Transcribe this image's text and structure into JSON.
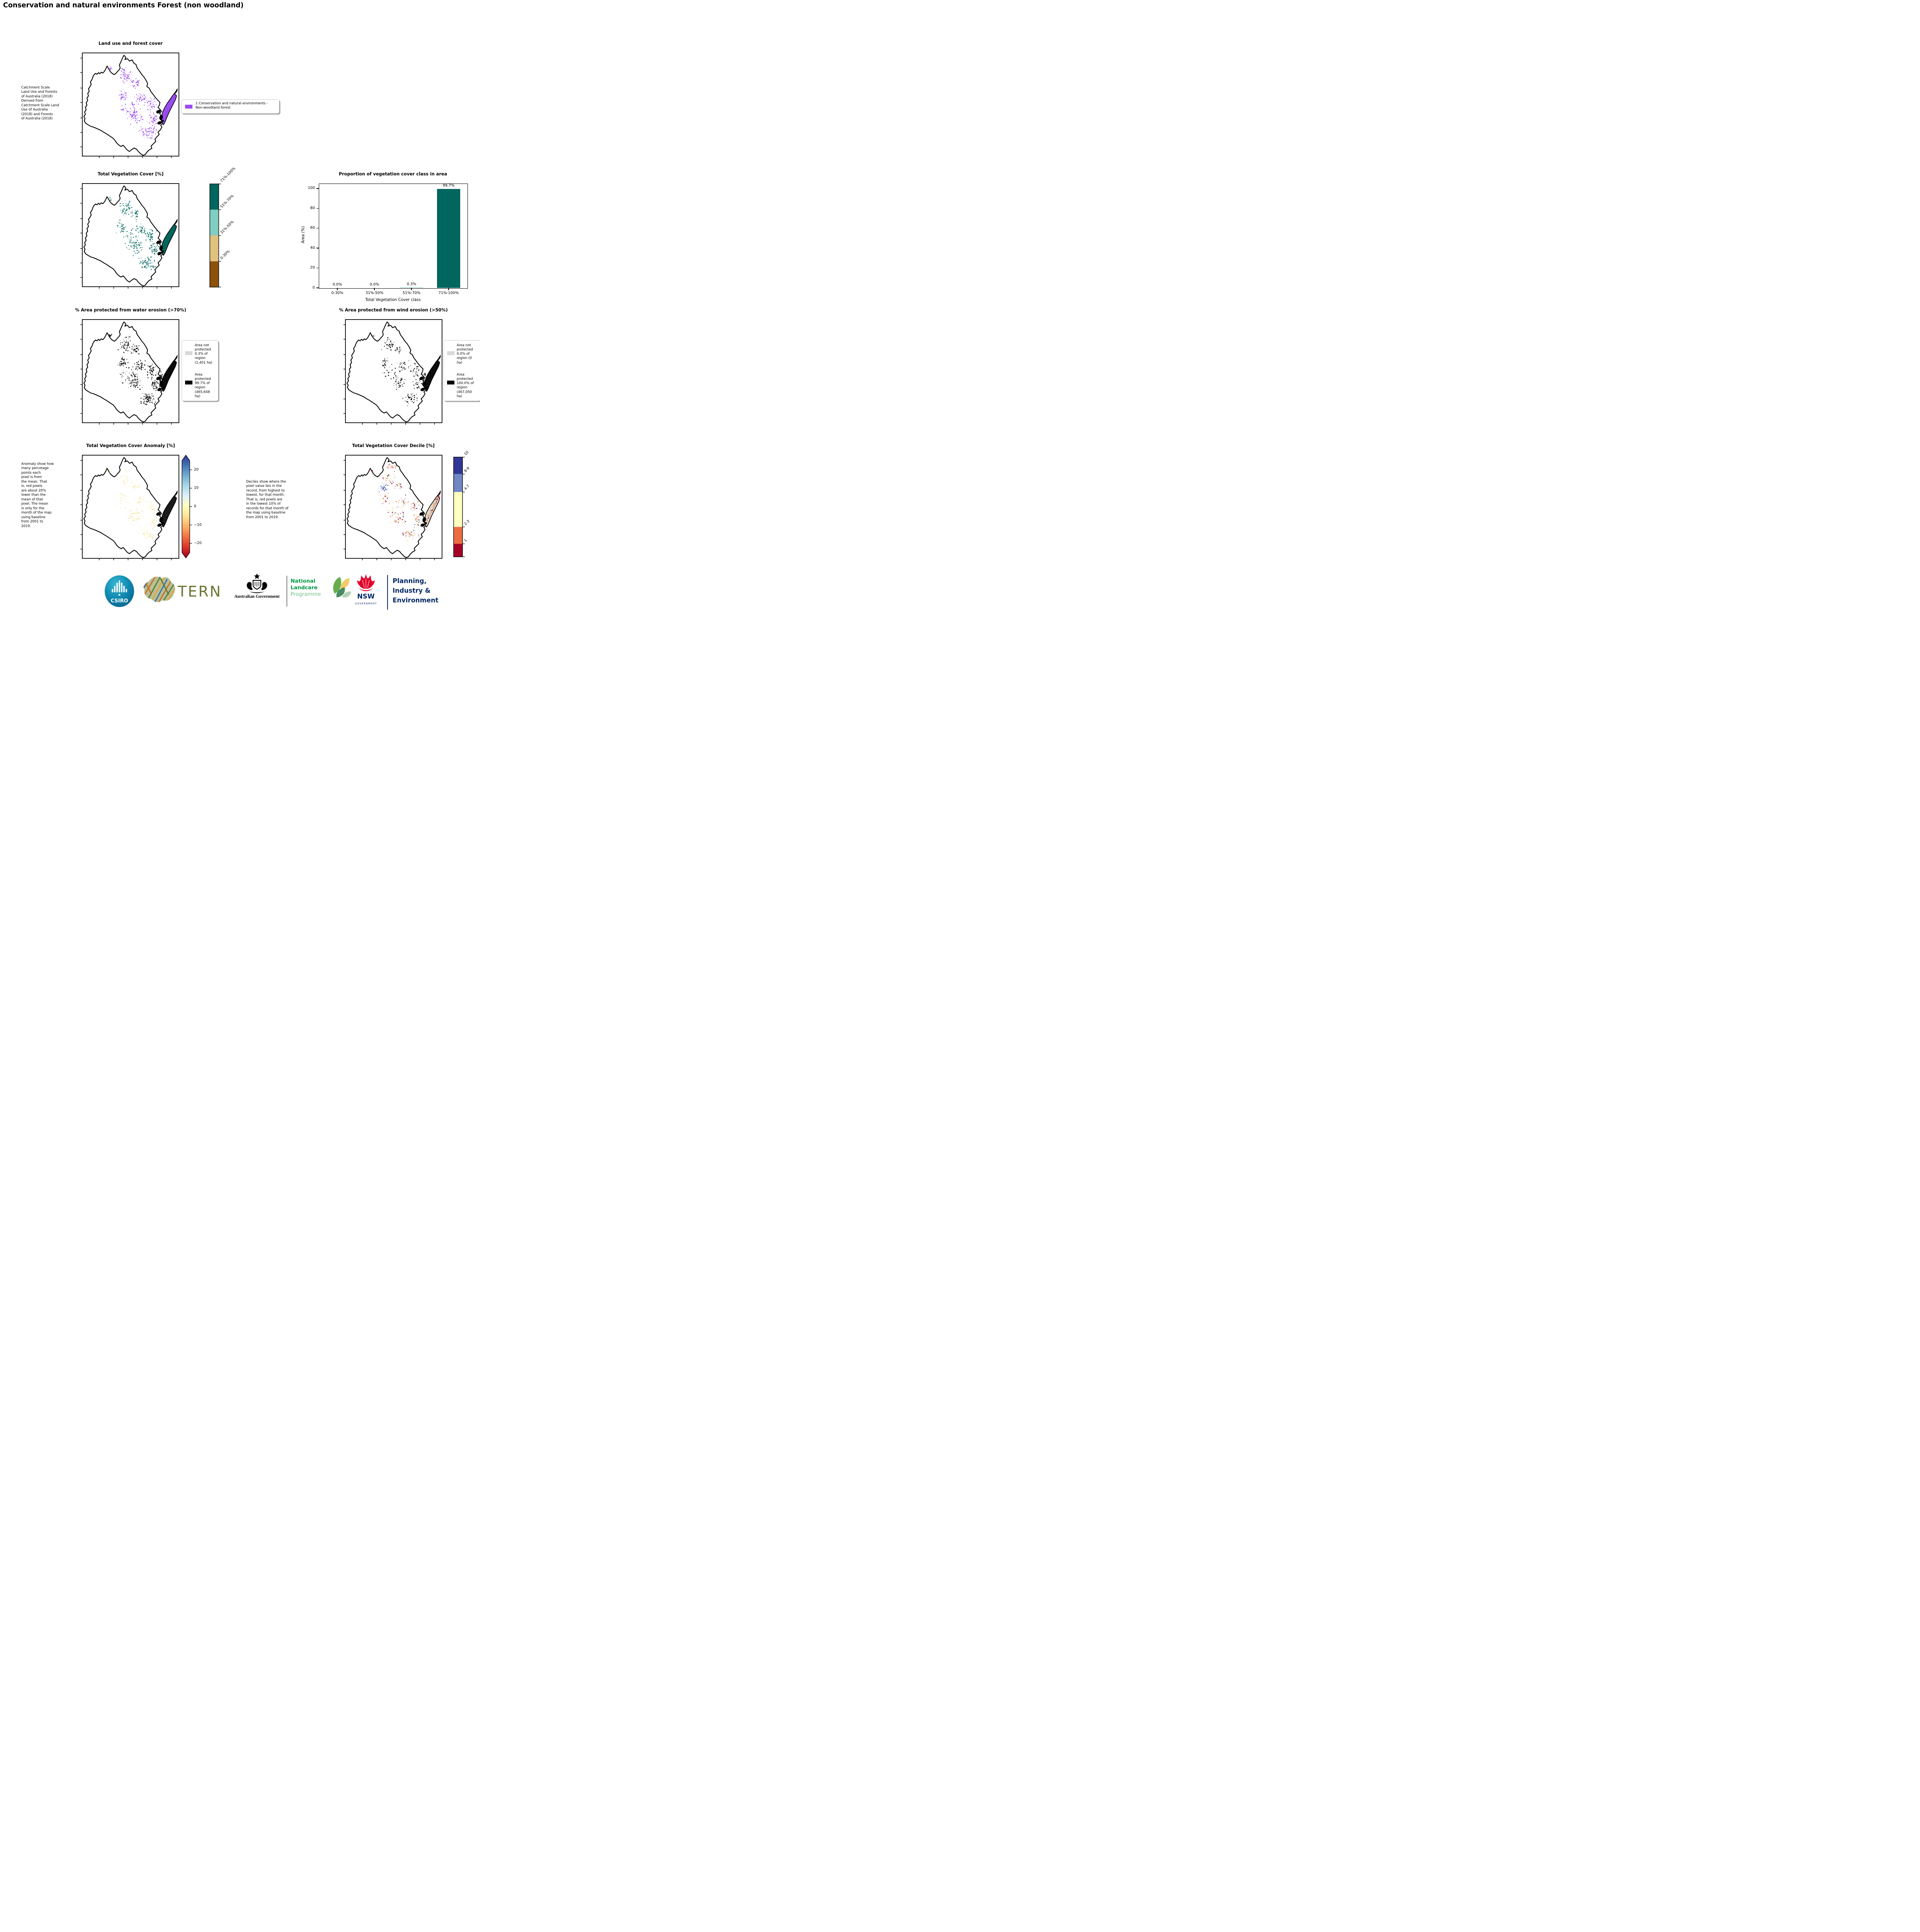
{
  "page_title": "Conservation and natural environments Forest (non woodland)",
  "panels": {
    "land_use": {
      "title": "Land use and forest cover",
      "side_note": " Catchment Scale\nLand Use and Forests\nof Australia (2018)\nDerived from\nCatchment Scale Land\nUse of Australia\n(2018) and Forests\nof Australia (2018)",
      "legend": {
        "swatch_color": "#9a4cf0",
        "label": "1 Conservation and natural environments - Non-woodland forest"
      }
    },
    "tvc": {
      "title": "Total Vegetation Cover [%]",
      "colorbar": [
        {
          "label": "71%-100%",
          "color": "#01665e"
        },
        {
          "label": "51%-70%",
          "color": "#80cdc1"
        },
        {
          "label": "31%-50%",
          "color": "#dfc27d"
        },
        {
          "label": "0-30%",
          "color": "#8c510a"
        }
      ]
    },
    "water": {
      "title": "% Area protected from water erosion (>70%)",
      "legend": [
        {
          "color": "#d9d9d9",
          "label": "Area not protected 0.3% of region (1,401 ha)"
        },
        {
          "color": "#000000",
          "label": "Area protected 99.7% of region (465,648 ha)"
        }
      ]
    },
    "wind": {
      "title": "% Area protected from wind erosion (>50%)",
      "legend": [
        {
          "color": "#d9d9d9",
          "label": "Area not protected 0.0% of region (0 ha)"
        },
        {
          "color": "#000000",
          "label": "Area protected 100.0% of region (467,050 ha)"
        }
      ]
    },
    "anomaly": {
      "title": "Total Vegetation Cover Anomaly [%]",
      "side_note": "Anomaly show how\nmany percetage\npoints each\npixel is from\nthe mean. That\nis, red pixels\nare about 20%\nlower than the\nmean of that\npixel. The mean\nis only for the\nmonth of the map\nusing baseline\nfrom 2001 to\n2019.",
      "colorbar_ticks": [
        "20",
        "10",
        "0",
        "−10",
        "−20"
      ],
      "gradient": [
        "#313695",
        "#4575b4",
        "#74add1",
        "#abd9e9",
        "#e0f3f8",
        "#ffffbf",
        "#fee090",
        "#fdae61",
        "#f46d43",
        "#d73027",
        "#a50026"
      ]
    },
    "decile": {
      "title": "Total Vegetation Cover Decile [%]",
      "side_note": "Deciles show where the\npixel value lies in the\nrecord, from highest to\nlowest, for that month.\nThat is, red pixels are\nin the lowest 10% of\nrecords for that month of\nthe map using baseline\nfrom 2001 to 2019.",
      "colorbar": [
        {
          "label": "10",
          "color": "#313695",
          "frac": 0.17
        },
        {
          "label": "8-9",
          "color": "#7087c4",
          "frac": 0.18
        },
        {
          "label": "4-7",
          "color": "#ffffbf",
          "frac": 0.35
        },
        {
          "label": "2-3",
          "color": "#ec6c41",
          "frac": 0.17
        },
        {
          "label": "1",
          "color": "#a50026",
          "frac": 0.13
        }
      ]
    }
  },
  "chart_data": {
    "type": "bar",
    "title": "Proportion of vegetation cover class in area",
    "categories": [
      "0-30%",
      "31%-50%",
      "51%-70%",
      "71%-100%"
    ],
    "values": [
      0.0,
      0.0,
      0.3,
      99.7
    ],
    "value_labels": [
      "0.0%",
      "0.0%",
      "0.3%",
      "99.7%"
    ],
    "bar_colors": [
      "#01665e",
      "#01665e",
      "#80cdc1",
      "#01665e"
    ],
    "xlabel": "Total Vegetation Cover class",
    "ylabel": "Area (%)",
    "ylim": [
      0,
      105
    ],
    "yticks": [
      0,
      20,
      40,
      60,
      80,
      100
    ],
    "grid": false,
    "legend_position": "none"
  },
  "footer": {
    "csiro": {
      "label": "CSIRO"
    },
    "tern": {
      "label": "TERN"
    },
    "aus_gov": {
      "label": "Australian Government"
    },
    "landcare": {
      "line1": "National",
      "line2": "Landcare",
      "line3": "Programme"
    },
    "nsw": {
      "name": "NSW",
      "sub": "GOVERNMENT"
    },
    "planning": {
      "lines": "Planning,\nIndustry &\nEnvironment"
    }
  }
}
